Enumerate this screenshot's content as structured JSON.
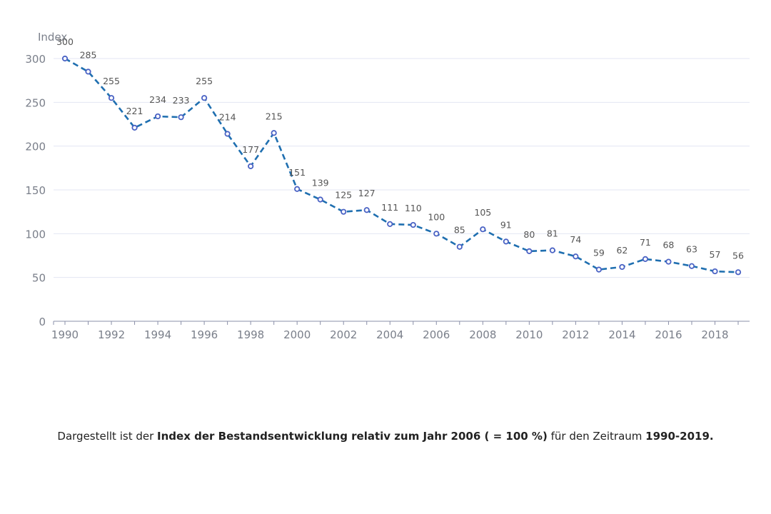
{
  "chart_data": {
    "type": "line",
    "ylabel": "Index",
    "xlabel": "",
    "title": "",
    "ylim": [
      0,
      300
    ],
    "yticks": [
      0,
      50,
      100,
      150,
      200,
      250,
      300
    ],
    "xticks": [
      1990,
      1992,
      1994,
      1996,
      1998,
      2000,
      2002,
      2004,
      2006,
      2008,
      2010,
      2012,
      2014,
      2016,
      2018
    ],
    "grid": true,
    "line_style": "dashed",
    "colors": {
      "line": "#1f6fb0",
      "marker": "#4a62c4",
      "grid": "#e3e6f3",
      "axis": "#8a8fa8",
      "tick_text": "#7a7f8a",
      "label_text": "#555555"
    },
    "series": [
      {
        "x": [
          1990,
          1991,
          1992,
          1993,
          1994,
          1995,
          1996,
          1997,
          1998,
          1999,
          2000,
          2001,
          2002,
          2003,
          2004,
          2005,
          2006,
          2007,
          2008,
          2009,
          2010,
          2011,
          2012,
          2013,
          2014,
          2015,
          2016,
          2017,
          2018,
          2019
        ],
        "values": [
          300,
          285,
          255,
          221,
          234,
          233,
          255,
          214,
          177,
          215,
          151,
          139,
          125,
          127,
          111,
          110,
          100,
          85,
          105,
          91,
          80,
          81,
          74,
          59,
          62,
          71,
          68,
          63,
          57,
          56
        ]
      }
    ]
  },
  "caption": {
    "part1": "Dargestellt ist der ",
    "bold1": "Index der Bestandsentwicklung relativ zum Jahr 2006 ( = 100 %)",
    "part2": " für den Zeitraum ",
    "bold2": "1990-2019."
  }
}
